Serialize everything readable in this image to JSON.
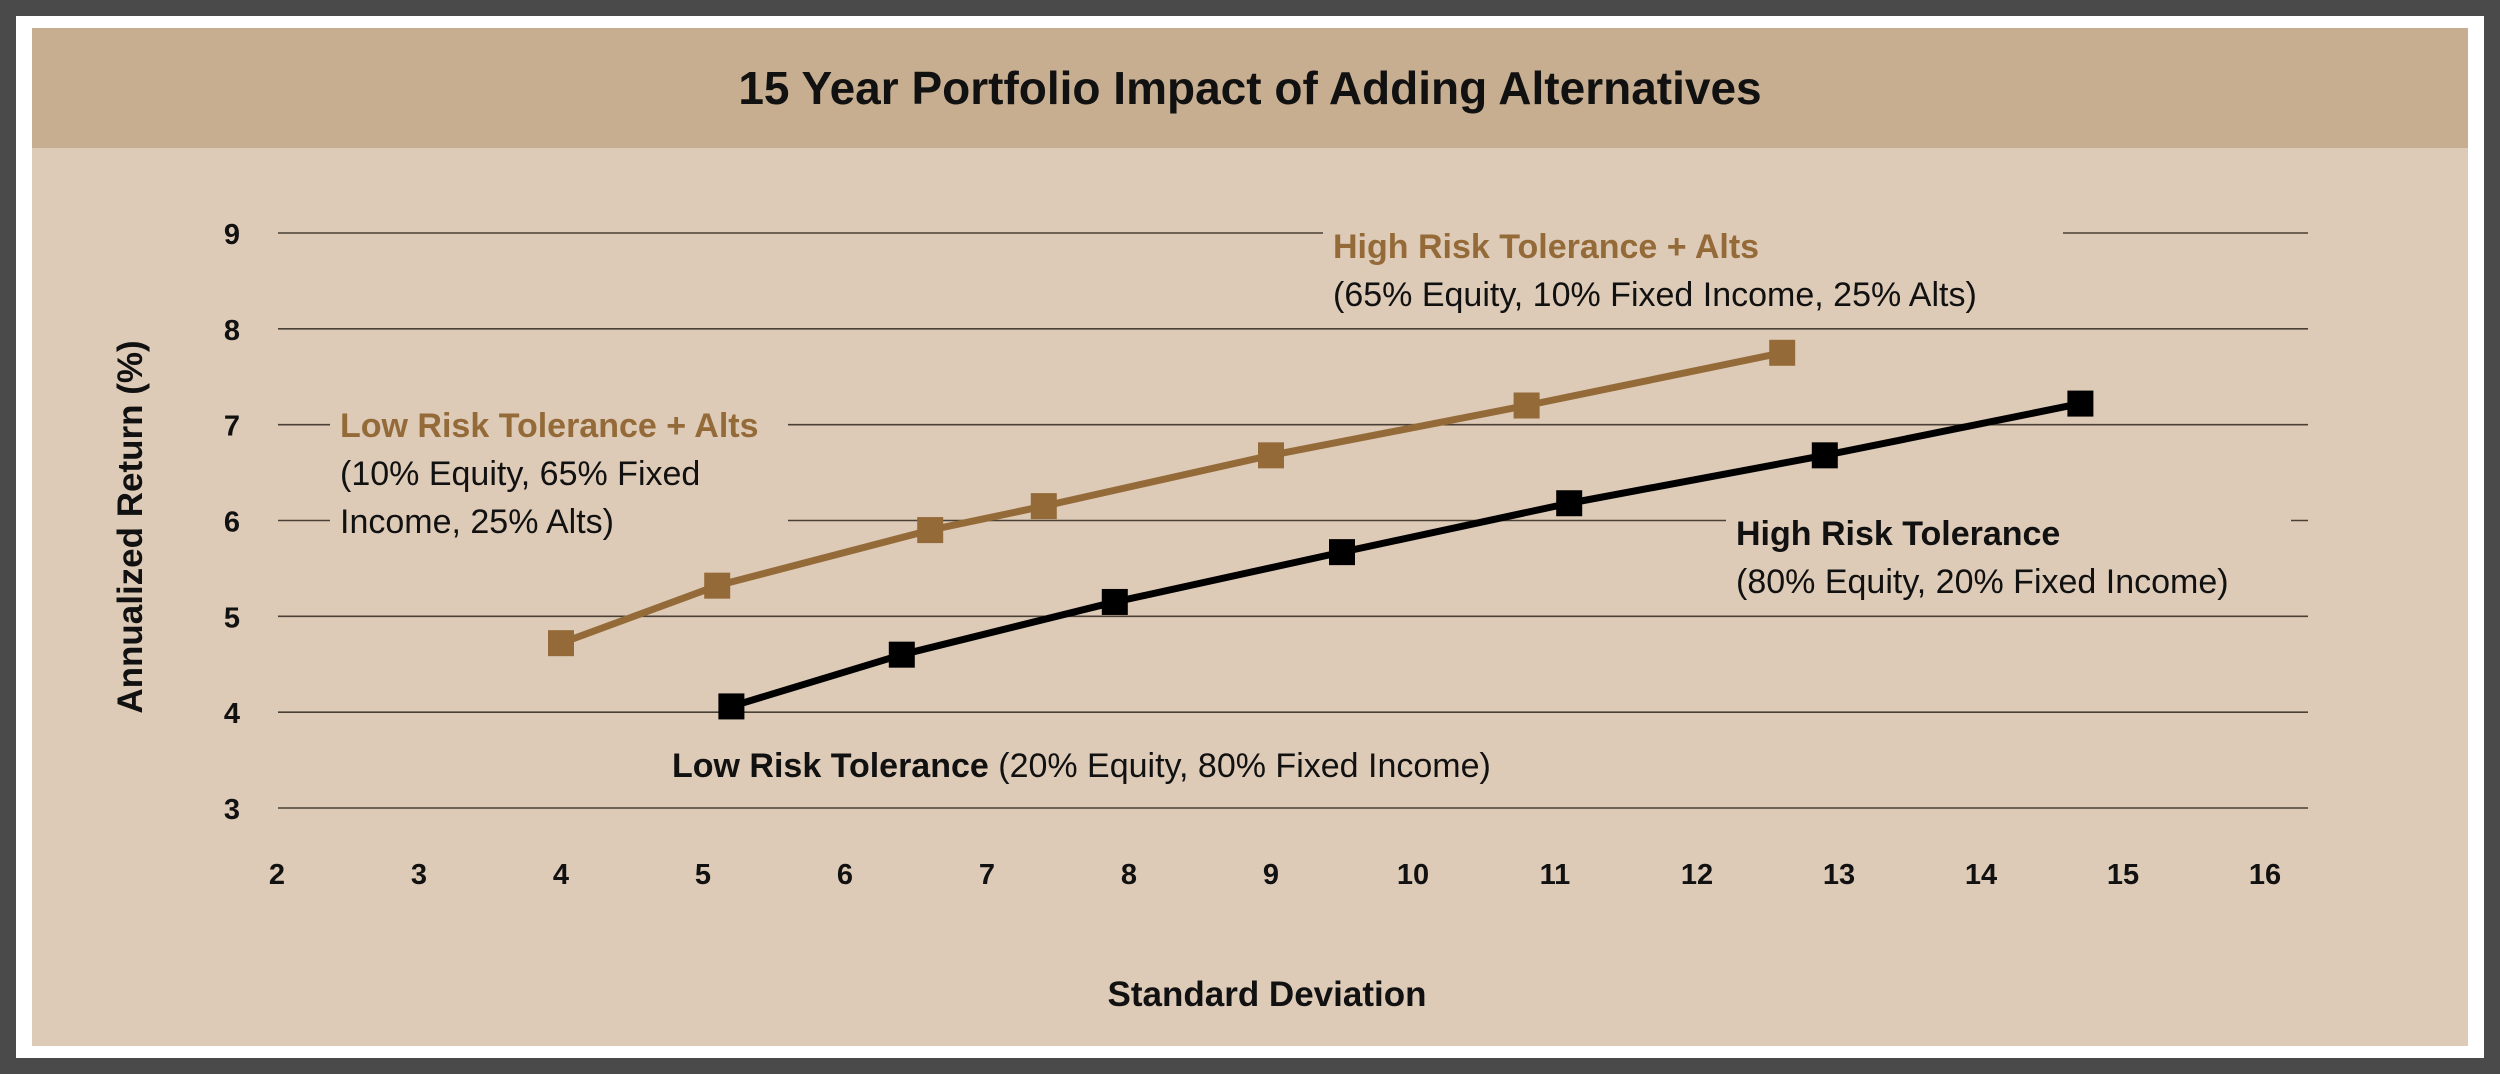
{
  "chart_data": {
    "type": "line",
    "title": "15 Year Portfolio Impact of Adding Alternatives",
    "xlabel": "Standard Deviation",
    "ylabel": "Annualized Return (%)",
    "xlim": [
      2,
      16
    ],
    "ylim": [
      3,
      9
    ],
    "x_ticks": [
      2,
      3,
      4,
      5,
      6,
      7,
      8,
      9,
      10,
      11,
      12,
      13,
      14,
      15,
      16
    ],
    "y_ticks": [
      3,
      4,
      5,
      6,
      7,
      8,
      9
    ],
    "grid": true,
    "colors": {
      "alts": "#946b38",
      "base": "#000000"
    },
    "series": [
      {
        "name": "High Risk Tolerance + Alts",
        "detail": "(65% Equity, 10% Fixed Income, 25% Alts)",
        "color": "#946b38",
        "x": [
          12.6,
          10.8,
          9.0,
          7.4,
          6.6,
          5.1,
          4.0
        ],
        "y": [
          7.75,
          7.2,
          6.68,
          6.15,
          5.9,
          5.32,
          4.72
        ]
      },
      {
        "name": "High Risk Tolerance",
        "detail": "(80% Equity, 20% Fixed Income)",
        "color": "#000000",
        "x": [
          14.7,
          12.9,
          11.1,
          9.5,
          7.9,
          6.4,
          5.2
        ],
        "y": [
          7.22,
          6.68,
          6.18,
          5.67,
          5.15,
          4.6,
          4.06
        ]
      }
    ],
    "annotations": [
      {
        "id": "high_alts",
        "bold": "High Risk Tolerance + Alts",
        "lines": [
          "(65% Equity, 10% Fixed Income, 25% Alts)"
        ],
        "color": "#946b38"
      },
      {
        "id": "low_alts",
        "bold": "Low Risk Tolerance + Alts",
        "lines": [
          "(10% Equity, 65% Fixed",
          "Income, 25% Alts)"
        ],
        "color": "#946b38"
      },
      {
        "id": "high_base",
        "bold": "High Risk Tolerance",
        "lines": [
          "(80% Equity, 20% Fixed Income)"
        ],
        "color": "#111111"
      },
      {
        "id": "low_base",
        "bold": "Low Risk Tolerance",
        "inline": " (20% Equity, 80% Fixed Income)",
        "color": "#111111"
      }
    ]
  }
}
